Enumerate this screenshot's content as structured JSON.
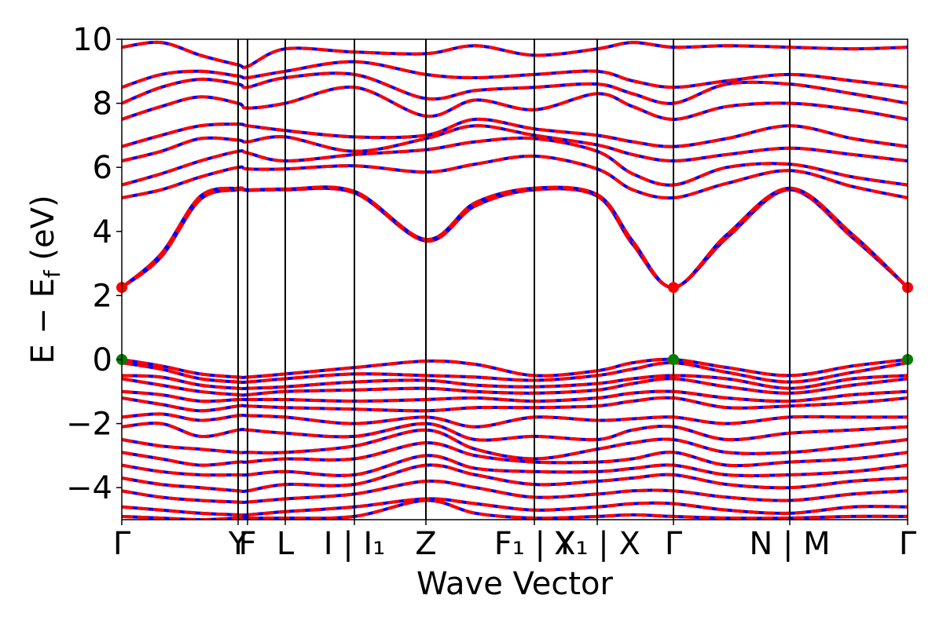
{
  "chart_data": {
    "type": "line",
    "title": "",
    "xlabel": "Wave Vector",
    "ylabel": "E − E",
    "ylabel_sub": "f",
    "ylabel_unit": " (eV)",
    "ylim": [
      -5,
      10
    ],
    "yticks": [
      -4,
      -2,
      0,
      2,
      4,
      6,
      8,
      10
    ],
    "ytick_labels": [
      "−4",
      "−2",
      "0",
      "2",
      "4",
      "6",
      "8",
      "10"
    ],
    "x_path": [
      {
        "pos": 0.0,
        "label": "Γ"
      },
      {
        "pos": 0.148,
        "label": "Y"
      },
      {
        "pos": 0.16,
        "label": "F"
      },
      {
        "pos": 0.208,
        "label": "L"
      },
      {
        "pos": 0.296,
        "label": "I | I₁"
      },
      {
        "pos": 0.387,
        "label": "Z"
      },
      {
        "pos": 0.525,
        "label": "F₁ | Y"
      },
      {
        "pos": 0.605,
        "label": "X₁ | X"
      },
      {
        "pos": 0.702,
        "label": "Γ"
      },
      {
        "pos": 0.85,
        "label": "N | M"
      },
      {
        "pos": 1.0,
        "label": "Γ"
      }
    ],
    "xlim": [
      0,
      1
    ],
    "grid": false,
    "series_colors": {
      "spin_up": "#0000ff",
      "spin_down": "#ff0000"
    },
    "band_style": "solid blue under dashed red",
    "cbm_marker": {
      "value": 2.25,
      "x": [
        0.0,
        0.702,
        1.0
      ],
      "color": "#ff0000"
    },
    "vbm_marker": {
      "value": 0.0,
      "x": [
        0.0,
        0.702,
        1.0
      ],
      "color": "#008000"
    },
    "conduction_bands": {
      "x": [
        0.0,
        0.05,
        0.1,
        0.148,
        0.16,
        0.208,
        0.296,
        0.387,
        0.45,
        0.525,
        0.605,
        0.65,
        0.702,
        0.77,
        0.85,
        0.93,
        1.0
      ],
      "bands": [
        [
          2.25,
          3.2,
          5.0,
          5.3,
          5.28,
          5.3,
          5.2,
          3.7,
          4.8,
          5.3,
          5.1,
          3.6,
          2.25,
          3.8,
          5.3,
          3.8,
          2.25
        ],
        [
          2.25,
          3.3,
          5.1,
          5.35,
          5.3,
          5.32,
          5.25,
          3.75,
          4.9,
          5.35,
          5.15,
          3.7,
          2.25,
          3.9,
          5.35,
          3.9,
          2.25
        ],
        [
          5.05,
          5.3,
          5.7,
          6.0,
          5.95,
          5.95,
          6.05,
          5.85,
          6.1,
          6.35,
          5.95,
          5.3,
          5.05,
          5.5,
          5.9,
          5.4,
          5.05
        ],
        [
          5.45,
          5.8,
          6.2,
          6.5,
          6.45,
          6.2,
          6.4,
          6.55,
          6.8,
          6.9,
          6.5,
          5.8,
          5.45,
          6.0,
          6.1,
          5.7,
          5.45
        ],
        [
          6.2,
          6.5,
          6.9,
          6.85,
          6.8,
          6.95,
          6.5,
          6.9,
          7.3,
          7.0,
          6.7,
          6.4,
          6.2,
          6.4,
          6.6,
          6.4,
          6.2
        ],
        [
          6.65,
          7.0,
          7.3,
          7.35,
          7.3,
          7.15,
          6.95,
          7.0,
          7.5,
          7.2,
          7.0,
          6.8,
          6.65,
          6.9,
          7.3,
          6.9,
          6.65
        ],
        [
          7.5,
          7.9,
          8.2,
          8.0,
          7.85,
          8.0,
          8.5,
          7.6,
          8.1,
          7.8,
          8.3,
          7.9,
          7.5,
          7.9,
          8.0,
          7.8,
          7.5
        ],
        [
          8.0,
          8.5,
          8.75,
          8.6,
          8.5,
          8.8,
          8.9,
          8.15,
          8.4,
          8.5,
          8.6,
          8.3,
          8.0,
          8.6,
          8.6,
          8.3,
          8.0
        ],
        [
          8.5,
          8.9,
          9.0,
          8.85,
          8.8,
          9.0,
          9.3,
          8.9,
          8.8,
          8.9,
          9.0,
          8.7,
          8.5,
          8.7,
          8.9,
          8.7,
          8.5
        ],
        [
          9.75,
          9.9,
          9.5,
          9.2,
          9.15,
          9.7,
          9.6,
          9.55,
          9.8,
          9.5,
          9.7,
          9.9,
          9.75,
          9.8,
          9.75,
          9.7,
          9.75
        ]
      ]
    },
    "valence_bands": {
      "x": [
        0.0,
        0.05,
        0.1,
        0.148,
        0.16,
        0.208,
        0.296,
        0.387,
        0.45,
        0.525,
        0.605,
        0.65,
        0.702,
        0.77,
        0.85,
        0.93,
        1.0
      ],
      "bands": [
        [
          0.0,
          -0.2,
          -0.45,
          -0.55,
          -0.55,
          -0.45,
          -0.25,
          -0.05,
          -0.15,
          -0.5,
          -0.35,
          -0.1,
          0.0,
          -0.25,
          -0.5,
          -0.2,
          0.0
        ],
        [
          -0.1,
          -0.3,
          -0.6,
          -0.7,
          -0.7,
          -0.6,
          -0.45,
          -0.5,
          -0.55,
          -0.65,
          -0.5,
          -0.3,
          -0.1,
          -0.4,
          -0.7,
          -0.4,
          -0.1
        ],
        [
          -0.5,
          -0.55,
          -0.8,
          -0.9,
          -0.9,
          -0.85,
          -0.7,
          -0.65,
          -0.8,
          -0.85,
          -0.75,
          -0.6,
          -0.5,
          -0.6,
          -0.9,
          -0.6,
          -0.5
        ],
        [
          -0.6,
          -0.8,
          -1.0,
          -1.1,
          -1.1,
          -1.0,
          -0.95,
          -0.9,
          -1.0,
          -1.05,
          -0.95,
          -0.75,
          -0.6,
          -0.85,
          -1.05,
          -0.8,
          -0.6
        ],
        [
          -1.0,
          -1.1,
          -1.3,
          -1.25,
          -1.25,
          -1.25,
          -1.3,
          -1.25,
          -1.2,
          -1.3,
          -1.2,
          -1.05,
          -1.0,
          -1.2,
          -1.3,
          -1.1,
          -1.0
        ],
        [
          -1.2,
          -1.4,
          -1.6,
          -1.45,
          -1.45,
          -1.5,
          -1.55,
          -1.6,
          -1.5,
          -1.5,
          -1.45,
          -1.3,
          -1.2,
          -1.5,
          -1.45,
          -1.35,
          -1.2
        ],
        [
          -1.8,
          -1.7,
          -1.9,
          -1.75,
          -1.75,
          -1.8,
          -2.0,
          -1.8,
          -2.1,
          -1.8,
          -1.9,
          -1.85,
          -1.8,
          -2.0,
          -1.8,
          -1.8,
          -1.8
        ],
        [
          -2.1,
          -2.0,
          -2.4,
          -2.2,
          -2.2,
          -2.3,
          -2.4,
          -2.0,
          -2.5,
          -2.4,
          -2.5,
          -2.2,
          -2.1,
          -2.5,
          -2.3,
          -2.2,
          -2.1
        ],
        [
          -2.5,
          -2.7,
          -2.8,
          -2.9,
          -2.9,
          -2.9,
          -2.7,
          -2.2,
          -2.8,
          -3.1,
          -2.8,
          -2.6,
          -2.5,
          -2.9,
          -2.9,
          -2.7,
          -2.5
        ],
        [
          -2.9,
          -3.1,
          -3.3,
          -3.2,
          -3.2,
          -3.1,
          -3.1,
          -2.6,
          -3.0,
          -3.2,
          -3.2,
          -3.1,
          -2.9,
          -3.3,
          -3.2,
          -3.1,
          -2.9
        ],
        [
          -3.3,
          -3.5,
          -3.6,
          -3.6,
          -3.6,
          -3.5,
          -3.6,
          -3.0,
          -3.4,
          -3.5,
          -3.5,
          -3.4,
          -3.3,
          -3.6,
          -3.6,
          -3.5,
          -3.3
        ],
        [
          -3.7,
          -3.9,
          -4.0,
          -4.1,
          -4.1,
          -3.9,
          -3.9,
          -3.3,
          -3.6,
          -3.9,
          -3.8,
          -3.7,
          -3.6,
          -3.9,
          -4.0,
          -3.8,
          -3.7
        ],
        [
          -4.1,
          -4.3,
          -4.4,
          -4.45,
          -4.45,
          -4.35,
          -4.2,
          -3.8,
          -4.0,
          -4.3,
          -4.2,
          -4.1,
          -4.1,
          -4.3,
          -4.4,
          -4.2,
          -4.1
        ],
        [
          -4.6,
          -4.7,
          -4.8,
          -4.85,
          -4.85,
          -4.75,
          -4.6,
          -4.35,
          -4.5,
          -4.7,
          -4.6,
          -4.5,
          -4.5,
          -4.7,
          -4.8,
          -4.6,
          -4.6
        ],
        [
          -4.9,
          -4.95,
          -5.0,
          -4.95,
          -4.95,
          -4.95,
          -4.9,
          -4.4,
          -4.8,
          -4.95,
          -4.9,
          -4.85,
          -4.9,
          -4.95,
          -4.95,
          -4.9,
          -4.9
        ]
      ]
    }
  }
}
